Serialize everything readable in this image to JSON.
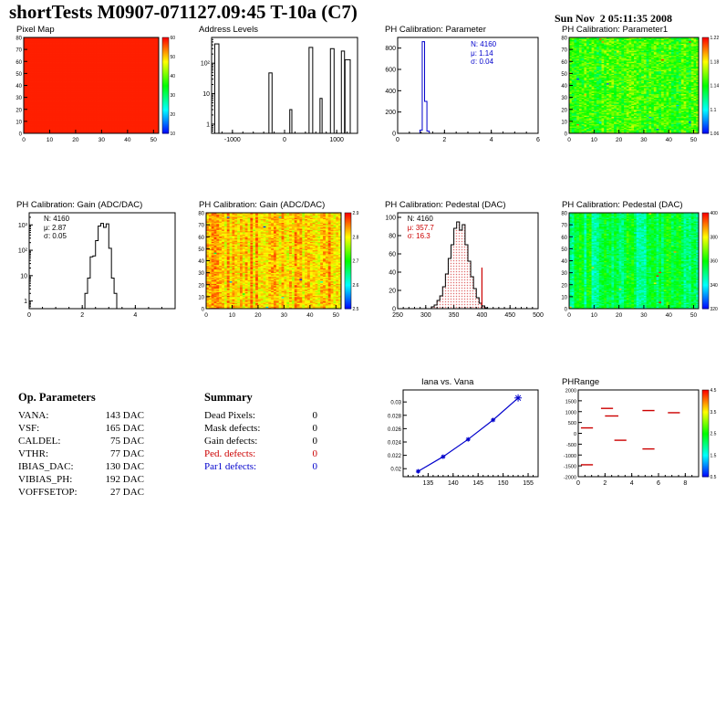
{
  "header": {
    "title": "shortTests M0907-071127.09:45 T-10a (C7)",
    "date": "Sun Nov  2 05:11:35 2008"
  },
  "op_parameters": {
    "title": "Op. Parameters",
    "rows": [
      {
        "label": "VANA:",
        "value": "143 DAC"
      },
      {
        "label": "VSF:",
        "value": "165 DAC"
      },
      {
        "label": "CALDEL:",
        "value": "75 DAC"
      },
      {
        "label": "VTHR:",
        "value": "77 DAC"
      },
      {
        "label": "IBIAS_DAC:",
        "value": "130 DAC"
      },
      {
        "label": "VIBIAS_PH:",
        "value": "192 DAC"
      },
      {
        "label": "VOFFSETOP:",
        "value": "27 DAC"
      }
    ]
  },
  "summary": {
    "title": "Summary",
    "rows": [
      {
        "label": "Dead Pixels:",
        "value": "0",
        "color": "#000000"
      },
      {
        "label": "Mask defects:",
        "value": "0",
        "color": "#000000"
      },
      {
        "label": "Gain defects:",
        "value": "0",
        "color": "#000000"
      },
      {
        "label": "Ped. defects:",
        "value": "0",
        "color": "#cc0000"
      },
      {
        "label": "Par1 defects:",
        "value": "0",
        "color": "#0000cc"
      }
    ]
  },
  "chart_data": [
    {
      "id": "pixel_map",
      "type": "heatmap",
      "title": "Pixel Map",
      "x_range": [
        0,
        52
      ],
      "x_ticks": [
        0,
        10,
        20,
        30,
        40,
        50
      ],
      "y_range": [
        0,
        80
      ],
      "y_ticks": [
        0,
        10,
        20,
        30,
        40,
        50,
        60,
        70,
        80
      ],
      "nx": 52,
      "ny": 80,
      "mode": "constant",
      "value": 0.97,
      "seed": 7,
      "ml": 18,
      "x_font": 6.5,
      "y_font": 6,
      "colorbar": {
        "labels": [
          "60",
          "50",
          "40",
          "30",
          "20",
          "10"
        ]
      }
    },
    {
      "id": "address_levels",
      "type": "hist",
      "title": "Address Levels",
      "log_y": true,
      "x_range": [
        -1400,
        1400
      ],
      "x_ticks": [
        -1000,
        0,
        1000
      ],
      "x_minor": 200,
      "y_range": [
        0.5,
        700
      ],
      "line_color": "#000000",
      "ml": 24,
      "bars": [
        [
          -1340,
          80,
          430
        ],
        [
          -300,
          60,
          48
        ],
        [
          100,
          40,
          3
        ],
        [
          470,
          70,
          330
        ],
        [
          680,
          40,
          7
        ],
        [
          880,
          70,
          300
        ],
        [
          1090,
          60,
          250
        ],
        [
          1160,
          100,
          130
        ]
      ]
    },
    {
      "id": "ph_param",
      "type": "hist",
      "title": "PH Calibration: Parameter",
      "x_range": [
        0,
        6
      ],
      "x_ticks": [
        0,
        2,
        4,
        6
      ],
      "x_minor": 0.5,
      "y_range": [
        0,
        900
      ],
      "y_ticks": [
        0,
        200,
        400,
        600,
        800
      ],
      "line_color": "#0000cc",
      "contiguous": true,
      "ml": 24,
      "bars": [
        [
          0.95,
          0.1,
          30
        ],
        [
          1.05,
          0.1,
          860
        ],
        [
          1.15,
          0.1,
          300
        ],
        [
          1.25,
          0.1,
          20
        ]
      ],
      "stats": {
        "x": 0.52,
        "y": 0.03,
        "lines": [
          {
            "text": "N: 4160",
            "color": "#0000cc"
          },
          {
            "text": "μ: 1.14",
            "color": "#0000cc"
          },
          {
            "text": "σ: 0.04",
            "color": "#0000cc"
          }
        ]
      }
    },
    {
      "id": "ph_param1_map",
      "type": "heatmap",
      "title": "PH Calibration: Parameter1",
      "x_range": [
        0,
        52
      ],
      "x_ticks": [
        0,
        10,
        20,
        30,
        40,
        50
      ],
      "y_range": [
        0,
        80
      ],
      "y_ticks": [
        0,
        10,
        20,
        30,
        40,
        50,
        60,
        70,
        80
      ],
      "nx": 52,
      "ny": 80,
      "mode": "noise",
      "base": 0.55,
      "col_var": 0.05,
      "noise": 0.12,
      "speckle": 0.01,
      "seed": 42,
      "ml": 18,
      "x_font": 6.5,
      "y_font": 6,
      "colorbar": {
        "labels": [
          "1.22",
          "1.18",
          "1.14",
          "1.1",
          "1.06"
        ]
      }
    },
    {
      "id": "gain_hist",
      "type": "hist",
      "title": "PH Calibration: Gain (ADC/DAC)",
      "log_y": true,
      "x_range": [
        0,
        5.5
      ],
      "x_ticks": [
        0,
        2,
        4
      ],
      "x_minor": 0.5,
      "y_range": [
        0.5,
        3000
      ],
      "line_color": "#000000",
      "contiguous": true,
      "ml": 24,
      "bars": [
        [
          2.1,
          0.1,
          2
        ],
        [
          2.2,
          0.1,
          8
        ],
        [
          2.3,
          0.1,
          55
        ],
        [
          2.4,
          0.1,
          60
        ],
        [
          2.5,
          0.1,
          240
        ],
        [
          2.6,
          0.1,
          900
        ],
        [
          2.7,
          0.1,
          1150
        ],
        [
          2.8,
          0.1,
          800
        ],
        [
          2.9,
          0.1,
          1100
        ],
        [
          3.0,
          0.1,
          120
        ],
        [
          3.1,
          0.1,
          8
        ],
        [
          3.2,
          0.1,
          2
        ]
      ],
      "stats": {
        "x": 0.1,
        "y": 0.02,
        "lines": [
          {
            "text": "N: 4160",
            "color": "#000000"
          },
          {
            "text": "μ: 2.87",
            "color": "#000000"
          },
          {
            "text": "σ: 0.05",
            "color": "#000000"
          }
        ]
      }
    },
    {
      "id": "gain_map",
      "type": "heatmap",
      "title": "PH Calibration: Gain (ADC/DAC)",
      "x_range": [
        0,
        52
      ],
      "x_ticks": [
        0,
        10,
        20,
        30,
        40,
        50
      ],
      "y_range": [
        0,
        80
      ],
      "y_ticks": [
        0,
        10,
        20,
        30,
        40,
        50,
        60,
        70,
        80
      ],
      "nx": 52,
      "ny": 80,
      "mode": "noise",
      "base": 0.8,
      "col_var": 0.07,
      "noise": 0.09,
      "speckle": 0.003,
      "seed": 17,
      "ml": 18,
      "x_font": 6.5,
      "y_font": 6,
      "colorbar": {
        "labels": [
          "2.9",
          "2.8",
          "2.7",
          "2.6",
          "2.5"
        ]
      }
    },
    {
      "id": "ped_hist",
      "type": "hist",
      "title": "PH Calibration: Pedestal (DAC)",
      "x_range": [
        250,
        500
      ],
      "x_ticks": [
        250,
        300,
        350,
        400,
        450,
        500
      ],
      "x_minor": 10,
      "y_range": [
        0,
        105
      ],
      "y_ticks": [
        0,
        20,
        40,
        60,
        80,
        100
      ],
      "line_color": "#000000",
      "fill": "dots",
      "contiguous": true,
      "ml": 24,
      "bars": [
        [
          310,
          5,
          2
        ],
        [
          315,
          5,
          4
        ],
        [
          320,
          5,
          9
        ],
        [
          325,
          5,
          14
        ],
        [
          330,
          5,
          24
        ],
        [
          335,
          5,
          38
        ],
        [
          340,
          5,
          55
        ],
        [
          345,
          5,
          70
        ],
        [
          350,
          5,
          88
        ],
        [
          355,
          5,
          95
        ],
        [
          360,
          5,
          86
        ],
        [
          365,
          5,
          92
        ],
        [
          370,
          5,
          70
        ],
        [
          375,
          5,
          52
        ],
        [
          380,
          5,
          35
        ],
        [
          385,
          5,
          22
        ],
        [
          390,
          5,
          12
        ],
        [
          395,
          5,
          6
        ],
        [
          400,
          5,
          3
        ],
        [
          405,
          5,
          1
        ]
      ],
      "vlines": [
        {
          "x": 400,
          "y": 45,
          "color": "#cc0000"
        }
      ],
      "stats": {
        "x": 0.07,
        "y": 0.02,
        "lines": [
          {
            "text": "N: 4160",
            "color": "#000000"
          },
          {
            "text": "μ: 357.7",
            "color": "#cc0000"
          },
          {
            "text": "σ: 16.3",
            "color": "#cc0000"
          }
        ]
      }
    },
    {
      "id": "ped_map",
      "type": "heatmap",
      "title": "PH Calibration: Pedestal (DAC)",
      "x_range": [
        0,
        52
      ],
      "x_ticks": [
        0,
        10,
        20,
        30,
        40,
        50
      ],
      "y_range": [
        0,
        80
      ],
      "y_ticks": [
        0,
        10,
        20,
        30,
        40,
        50,
        60,
        70,
        80
      ],
      "nx": 52,
      "ny": 80,
      "mode": "noise",
      "base": 0.42,
      "col_var": 0.1,
      "noise": 0.08,
      "speckle": 0.004,
      "seed": 99,
      "ml": 18,
      "x_font": 6.5,
      "y_font": 6,
      "colorbar": {
        "labels": [
          "400",
          "380",
          "360",
          "340",
          "320"
        ]
      }
    },
    {
      "id": "iana_vana",
      "type": "line",
      "title": "Iana vs. Vana",
      "x_range": [
        130,
        157
      ],
      "x_ticks": [
        135,
        140,
        145,
        150,
        155
      ],
      "x_minor": 1,
      "y_range": [
        0.0188,
        0.0318
      ],
      "y_ticks": [
        0.02,
        0.022,
        0.024,
        0.026,
        0.028,
        0.03
      ],
      "line_color": "#0000cc",
      "ml": 30,
      "y_font": 6,
      "points": [
        [
          133,
          0.0196
        ],
        [
          138,
          0.0218
        ],
        [
          143,
          0.0244
        ],
        [
          148,
          0.0273
        ],
        [
          153,
          0.0306
        ]
      ]
    },
    {
      "id": "phrange",
      "type": "segments",
      "title": "PHRange",
      "x_range": [
        0,
        9
      ],
      "x_ticks": [
        0,
        2,
        4,
        6,
        8
      ],
      "x_minor": 0.5,
      "y_range": [
        -2000,
        2000
      ],
      "y_ticks": [
        2000,
        1500,
        1000,
        500,
        0,
        -500,
        -1000,
        -1500,
        -2000
      ],
      "y_font": 5.5,
      "ml": 28,
      "seg_color": "#cc0000",
      "segments": [
        [
          1.7,
          2.6,
          1150
        ],
        [
          4.8,
          5.7,
          1050
        ],
        [
          6.7,
          7.6,
          950
        ],
        [
          2.0,
          3.0,
          800
        ],
        [
          0.2,
          1.1,
          250
        ],
        [
          2.7,
          3.6,
          -320
        ],
        [
          4.8,
          5.7,
          -720
        ],
        [
          0.2,
          1.1,
          -1450
        ]
      ],
      "colorbar": {
        "labels": [
          "4.5",
          "3.5",
          "2.5",
          "1.5",
          "0.5"
        ]
      }
    }
  ]
}
